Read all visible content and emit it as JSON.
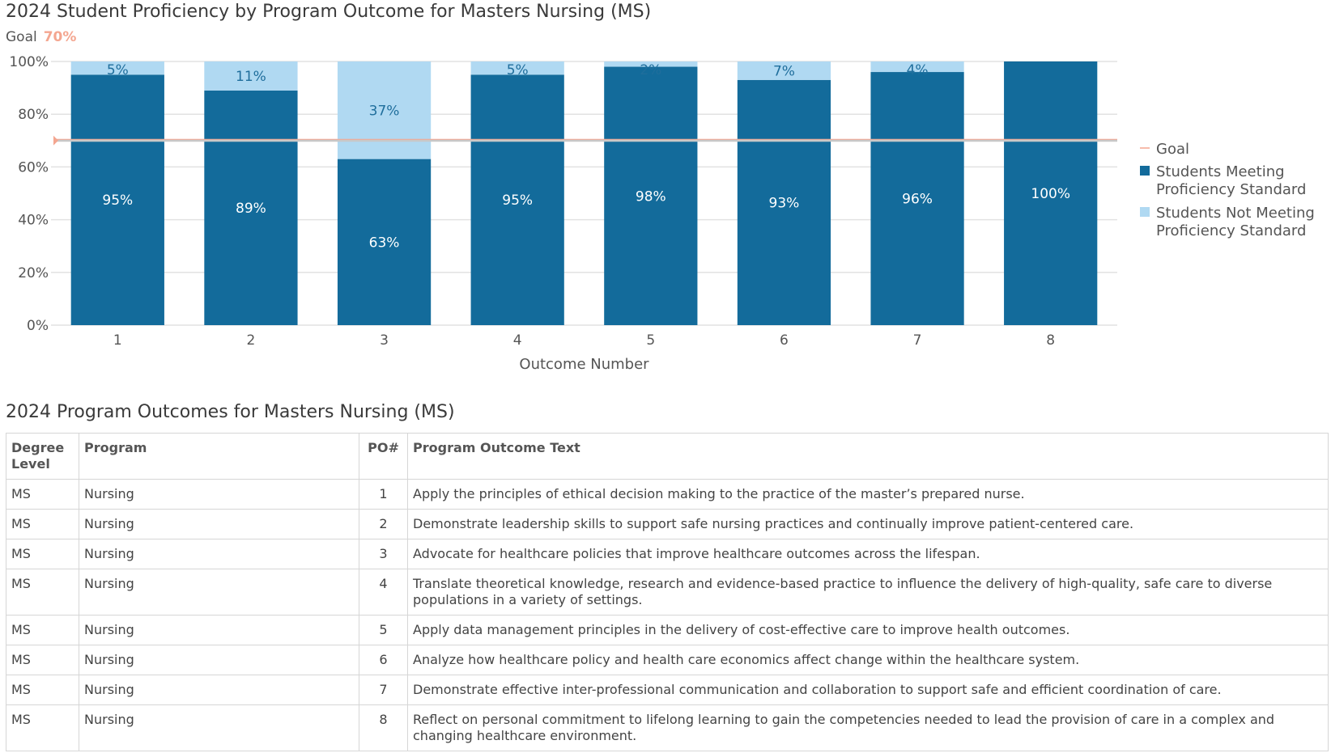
{
  "page": {
    "chart_title": "2024 Student Proficiency by Program Outcome for Masters Nursing (MS)",
    "goal_label": "Goal",
    "goal_value_text": "70%",
    "table_title": "2024 Program Outcomes for Masters Nursing (MS)"
  },
  "chart_data": {
    "type": "bar",
    "stacked": true,
    "title": "2024 Student Proficiency by Program Outcome for Masters Nursing (MS)",
    "xlabel": "Outcome Number",
    "ylabel": "",
    "ylim": [
      0,
      100
    ],
    "y_ticks": [
      0,
      20,
      40,
      60,
      80,
      100
    ],
    "y_tick_labels": [
      "0%",
      "20%",
      "40%",
      "60%",
      "80%",
      "100%"
    ],
    "categories": [
      "1",
      "2",
      "3",
      "4",
      "5",
      "6",
      "7",
      "8"
    ],
    "series": [
      {
        "name": "Students Meeting Proficiency Standard",
        "legend_lines": [
          "Students Meeting",
          "Proficiency Standard"
        ],
        "color": "#136b9b",
        "label_color": "#ffffff",
        "values": [
          95,
          89,
          63,
          95,
          98,
          93,
          96,
          100
        ],
        "labels": [
          "95%",
          "89%",
          "63%",
          "95%",
          "98%",
          "93%",
          "96%",
          "100%"
        ]
      },
      {
        "name": "Students Not Meeting Proficiency Standard",
        "legend_lines": [
          "Students Not Meeting",
          "Proficiency Standard"
        ],
        "color": "#b0d9f2",
        "label_color": "#1f6e9c",
        "values": [
          5,
          11,
          37,
          5,
          2,
          7,
          4,
          0
        ],
        "labels": [
          "5%",
          "11%",
          "37%",
          "5%",
          "2%",
          "7%",
          "4%",
          ""
        ]
      }
    ],
    "goal": {
      "name": "Goal",
      "value": 70,
      "color": "#f4a690"
    },
    "legend_position": "right",
    "grid": true
  },
  "table": {
    "headers": {
      "degree": "Degree Level",
      "program": "Program",
      "po": "PO#",
      "text": "Program Outcome Text"
    },
    "rows": [
      {
        "degree": "MS",
        "program": "Nursing",
        "po": "1",
        "text": "Apply the principles of ethical decision making to the practice of the master’s prepared nurse."
      },
      {
        "degree": "MS",
        "program": "Nursing",
        "po": "2",
        "text": "Demonstrate leadership skills to support safe nursing practices and continually improve patient-centered care."
      },
      {
        "degree": "MS",
        "program": "Nursing",
        "po": "3",
        "text": "Advocate for healthcare policies that improve healthcare outcomes across the lifespan."
      },
      {
        "degree": "MS",
        "program": "Nursing",
        "po": "4",
        "text": "Translate theoretical knowledge, research and evidence-based practice to influence the delivery of high-quality, safe care to diverse populations in a variety of settings."
      },
      {
        "degree": "MS",
        "program": "Nursing",
        "po": "5",
        "text": "Apply data management principles in the delivery of cost-effective care to improve health outcomes."
      },
      {
        "degree": "MS",
        "program": "Nursing",
        "po": "6",
        "text": "Analyze how healthcare policy and health care economics affect change within the healthcare system."
      },
      {
        "degree": "MS",
        "program": "Nursing",
        "po": "7",
        "text": "Demonstrate effective inter-professional communication and collaboration to support safe and efficient coordination of care."
      },
      {
        "degree": "MS",
        "program": "Nursing",
        "po": "8",
        "text": "Reflect on personal commitment to lifelong learning to gain the competencies needed to lead the provision of care in a complex and changing healthcare environment."
      }
    ]
  }
}
